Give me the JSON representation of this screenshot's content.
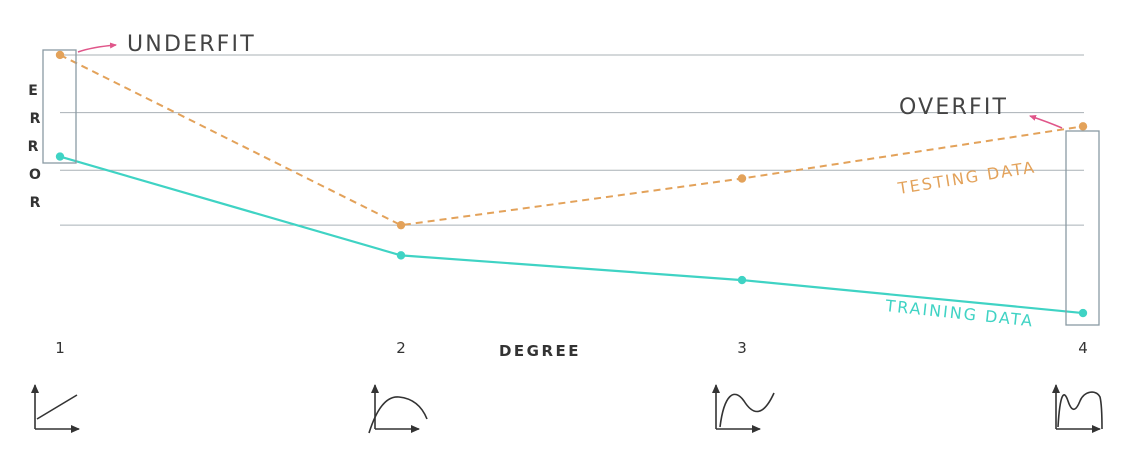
{
  "chart_data": {
    "type": "line",
    "xlabel": "DEGREE",
    "ylabel": "ERROR",
    "x": [
      1,
      2,
      3,
      4
    ],
    "series": [
      {
        "name": "TESTING DATA",
        "values": [
          0.92,
          0.3,
          0.47,
          0.66
        ],
        "color": "#E3A25A",
        "style": "dashed"
      },
      {
        "name": "TRAINING DATA",
        "values": [
          0.55,
          0.19,
          0.1,
          -0.02
        ],
        "color": "#3FD3C4",
        "style": "solid"
      }
    ],
    "ylim": [
      -0.1,
      1.0
    ],
    "grid": true,
    "annotations": [
      {
        "text": "UNDERFIT",
        "target_x": 1
      },
      {
        "text": "OVERFIT",
        "target_x": 4
      }
    ],
    "curve_icons": [
      {
        "x": 1,
        "icon": "linear-fit-icon"
      },
      {
        "x": 2,
        "icon": "quadratic-fit-icon"
      },
      {
        "x": 3,
        "icon": "cubic-fit-icon"
      },
      {
        "x": 4,
        "icon": "quartic-fit-icon"
      }
    ]
  }
}
